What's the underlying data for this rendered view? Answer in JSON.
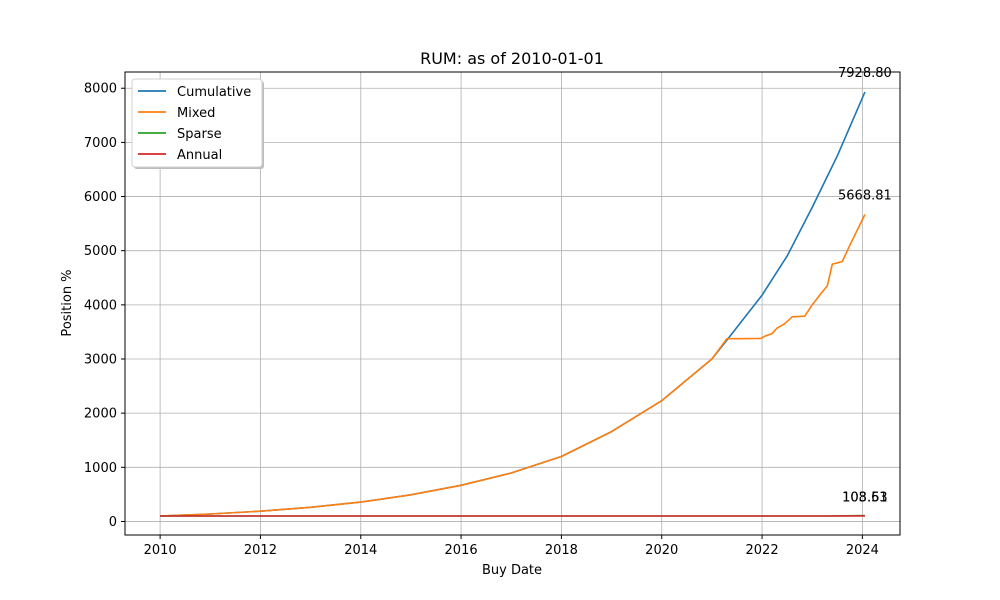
{
  "chart_data": {
    "type": "line",
    "title": "RUM: as of 2010-01-01",
    "xlabel": "Buy Date",
    "ylabel": "Position %",
    "xlim": [
      2009.3,
      2024.75
    ],
    "ylim": [
      -250,
      8300
    ],
    "xticks": [
      2010,
      2012,
      2014,
      2016,
      2018,
      2020,
      2022,
      2024
    ],
    "yticks": [
      0,
      1000,
      2000,
      3000,
      4000,
      5000,
      6000,
      7000,
      8000
    ],
    "grid": true,
    "legend": {
      "placement": "top-left"
    },
    "series": [
      {
        "name": "Cumulative",
        "color": "#1f77b4",
        "x": [
          2010.0,
          2011.0,
          2012.0,
          2013.0,
          2014.0,
          2015.0,
          2016.0,
          2017.0,
          2018.0,
          2019.0,
          2020.0,
          2021.0,
          2021.3,
          2022.0,
          2022.5,
          2023.0,
          2023.5,
          2024.05
        ],
        "y": [
          100,
          138,
          190,
          261,
          358,
          492,
          668,
          895,
          1200,
          1660,
          2230,
          3000,
          3350,
          4180,
          4900,
          5800,
          6750,
          7928.8
        ]
      },
      {
        "name": "Mixed",
        "color": "#ff7f0e",
        "x": [
          2010.0,
          2011.0,
          2012.0,
          2013.0,
          2014.0,
          2015.0,
          2016.0,
          2017.0,
          2018.0,
          2019.0,
          2020.0,
          2021.0,
          2021.3,
          2021.5,
          2021.98,
          2022.05,
          2022.2,
          2022.3,
          2022.45,
          2022.6,
          2022.85,
          2023.0,
          2023.15,
          2023.3,
          2023.33,
          2023.4,
          2023.6,
          2023.75,
          2024.05
        ],
        "y": [
          100,
          138,
          190,
          261,
          358,
          492,
          668,
          895,
          1200,
          1660,
          2230,
          3000,
          3375,
          3375,
          3380,
          3420,
          3470,
          3570,
          3650,
          3780,
          3790,
          4000,
          4180,
          4350,
          4470,
          4750,
          4800,
          5100,
          5668.81
        ]
      },
      {
        "name": "Sparse",
        "color": "#2ca02c",
        "x": [
          2010.0,
          2023.3,
          2024.05
        ],
        "y": [
          100,
          100,
          108.61
        ]
      },
      {
        "name": "Annual",
        "color": "#d62728",
        "x": [
          2010.0,
          2023.3,
          2024.05
        ],
        "y": [
          100,
          100,
          103.53
        ]
      }
    ],
    "end_labels": [
      {
        "series": "Cumulative",
        "text": "7928.80"
      },
      {
        "series": "Mixed",
        "text": "5668.81"
      },
      {
        "series": "Sparse",
        "text": "108.61"
      },
      {
        "series": "Annual",
        "text": "103.53"
      }
    ]
  }
}
